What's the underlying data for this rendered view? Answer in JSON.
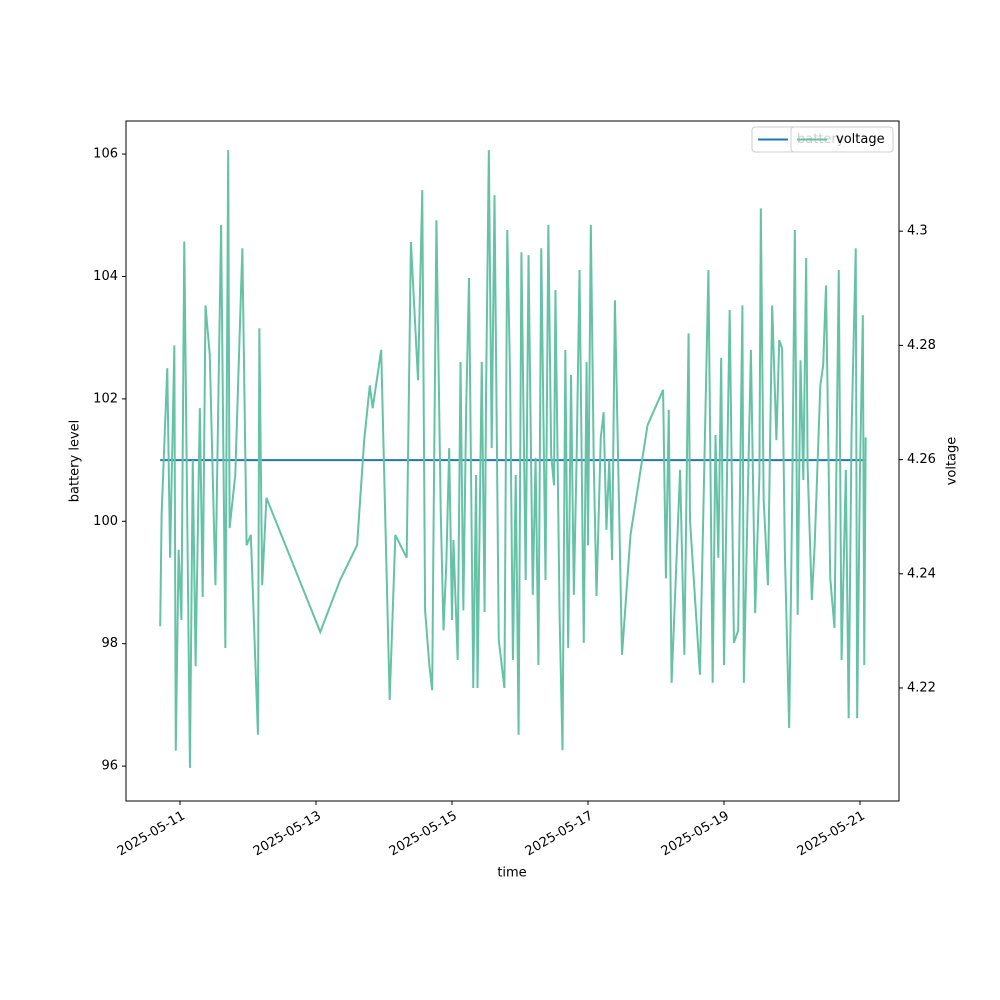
{
  "chart_data": {
    "type": "line",
    "xlabel": "time",
    "ylabel": "battery level",
    "y2label": "voltage",
    "xlim": [
      "2025-05-10T04:56",
      "2025-05-21T13:46"
    ],
    "xticks": [
      "2025-05-11",
      "2025-05-13",
      "2025-05-15",
      "2025-05-17",
      "2025-05-19",
      "2025-05-21"
    ],
    "ylim": [
      95.43,
      106.54
    ],
    "yticks": [
      96,
      98,
      100,
      102,
      104,
      106
    ],
    "y2lim": [
      4.2002,
      4.3193
    ],
    "y2ticks": [
      4.22,
      4.24,
      4.26,
      4.28,
      4.3
    ],
    "legend": "upper right",
    "x": [
      "2025-05-10T17:00",
      "2025-05-10T17:30",
      "2025-05-10T19:30",
      "2025-05-10T20:30",
      "2025-05-10T22:00",
      "2025-05-10T22:30",
      "2025-05-10T23:30",
      "2025-05-11T00:30",
      "2025-05-11T01:30",
      "2025-05-11T03:30",
      "2025-05-11T04:30",
      "2025-05-11T05:30",
      "2025-05-11T07:00",
      "2025-05-11T08:00",
      "2025-05-11T09:00",
      "2025-05-11T10:30",
      "2025-05-11T12:30",
      "2025-05-11T14:30",
      "2025-05-11T16:00",
      "2025-05-11T17:00",
      "2025-05-11T17:30",
      "2025-05-11T19:30",
      "2025-05-11T22:00",
      "2025-05-11T23:30",
      "2025-05-12T01:00",
      "2025-05-12T03:30",
      "2025-05-12T04:00",
      "2025-05-12T05:00",
      "2025-05-12T06:30",
      "2025-05-13T01:30",
      "2025-05-13T08:30",
      "2025-05-13T14:30",
      "2025-05-13T17:00",
      "2025-05-13T19:00",
      "2025-05-13T20:00",
      "2025-05-13T23:00",
      "2025-05-14T02:00",
      "2025-05-14T04:00",
      "2025-05-14T08:00",
      "2025-05-14T09:30",
      "2025-05-14T12:00",
      "2025-05-14T13:30",
      "2025-05-14T14:30",
      "2025-05-14T16:00",
      "2025-05-14T17:00",
      "2025-05-14T17:30",
      "2025-05-14T18:30",
      "2025-05-14T20:00",
      "2025-05-14T21:00",
      "2025-05-14T22:00",
      "2025-05-14T23:00",
      "2025-05-15T00:00",
      "2025-05-15T00:30",
      "2025-05-15T02:00",
      "2025-05-15T03:00",
      "2025-05-15T04:00",
      "2025-05-15T05:00",
      "2025-05-15T06:00",
      "2025-05-15T07:30",
      "2025-05-15T08:30",
      "2025-05-15T09:00",
      "2025-05-15T10:30",
      "2025-05-15T11:30",
      "2025-05-15T12:00",
      "2025-05-15T13:00",
      "2025-05-15T14:00",
      "2025-05-15T15:00",
      "2025-05-15T16:30",
      "2025-05-15T18:30",
      "2025-05-15T19:30",
      "2025-05-15T20:30",
      "2025-05-15T21:30",
      "2025-05-15T22:30",
      "2025-05-15T23:30",
      "2025-05-16T00:30",
      "2025-05-16T02:00",
      "2025-05-16T03:00",
      "2025-05-16T04:30",
      "2025-05-16T05:30",
      "2025-05-16T06:30",
      "2025-05-16T07:30",
      "2025-05-16T09:00",
      "2025-05-16T10:00",
      "2025-05-16T11:00",
      "2025-05-16T12:00",
      "2025-05-16T12:30",
      "2025-05-16T14:00",
      "2025-05-16T15:00",
      "2025-05-16T16:00",
      "2025-05-16T17:00",
      "2025-05-16T18:00",
      "2025-05-16T19:00",
      "2025-05-16T20:00",
      "2025-05-16T21:00",
      "2025-05-16T22:30",
      "2025-05-16T23:30",
      "2025-05-17T00:00",
      "2025-05-17T01:00",
      "2025-05-17T02:00",
      "2025-05-17T03:00",
      "2025-05-17T04:30",
      "2025-05-17T05:30",
      "2025-05-17T06:30",
      "2025-05-17T07:30",
      "2025-05-17T08:30",
      "2025-05-17T09:30",
      "2025-05-17T12:00",
      "2025-05-17T15:00",
      "2025-05-17T21:00",
      "2025-05-18T02:30",
      "2025-05-18T03:30",
      "2025-05-18T04:30",
      "2025-05-18T05:30",
      "2025-05-18T08:30",
      "2025-05-18T10:00",
      "2025-05-18T11:30",
      "2025-05-18T12:00",
      "2025-05-18T15:30",
      "2025-05-18T18:30",
      "2025-05-18T20:00",
      "2025-05-18T21:00",
      "2025-05-18T22:00",
      "2025-05-18T23:00",
      "2025-05-19T00:00",
      "2025-05-19T02:00",
      "2025-05-19T03:30",
      "2025-05-19T05:00",
      "2025-05-19T06:30",
      "2025-05-19T07:00",
      "2025-05-19T09:30",
      "2025-05-19T11:00",
      "2025-05-19T12:30",
      "2025-05-19T13:00",
      "2025-05-19T14:00",
      "2025-05-19T15:30",
      "2025-05-19T17:00",
      "2025-05-19T18:30",
      "2025-05-19T19:30",
      "2025-05-19T20:30",
      "2025-05-19T21:30",
      "2025-05-19T23:00",
      "2025-05-20T00:00",
      "2025-05-20T01:00",
      "2025-05-20T02:00",
      "2025-05-20T03:00",
      "2025-05-20T04:00",
      "2025-05-20T05:00",
      "2025-05-20T05:30",
      "2025-05-20T07:00",
      "2025-05-20T08:00",
      "2025-05-20T10:00",
      "2025-05-20T11:00",
      "2025-05-20T12:00",
      "2025-05-20T13:30",
      "2025-05-20T15:00",
      "2025-05-20T16:30",
      "2025-05-20T17:30",
      "2025-05-20T19:00",
      "2025-05-20T20:00",
      "2025-05-20T21:00",
      "2025-05-20T22:30",
      "2025-05-20T23:00",
      "2025-05-21T00:00",
      "2025-05-21T01:00",
      "2025-05-21T01:30",
      "2025-05-21T02:00"
    ],
    "series": [
      {
        "name": "battery",
        "color": "#1f77b4",
        "values": [
          101,
          101,
          101,
          101,
          101,
          101,
          101,
          101,
          101,
          101,
          101,
          101,
          101,
          101,
          101,
          101,
          101,
          101,
          101,
          101,
          101,
          101,
          101,
          101,
          101,
          101,
          101,
          101,
          101,
          101,
          101,
          101,
          101,
          101,
          101,
          101,
          101,
          101,
          101,
          101,
          101,
          101,
          101,
          101,
          101,
          101,
          101,
          101,
          101,
          101,
          101,
          101,
          101,
          101,
          101,
          101,
          101,
          101,
          101,
          101,
          101,
          101,
          101,
          101,
          101,
          101,
          101,
          101,
          101,
          101,
          101,
          101,
          101,
          101,
          101,
          101,
          101,
          101,
          101,
          101,
          101,
          101,
          101,
          101,
          101,
          101,
          101,
          101,
          101,
          101,
          101,
          101,
          101,
          101,
          101,
          101,
          101,
          101,
          101,
          101,
          101,
          101,
          101,
          101,
          101,
          101,
          101,
          101,
          101,
          101,
          101,
          101,
          101,
          101,
          101,
          101,
          101,
          101,
          101,
          101,
          101,
          101,
          101,
          101,
          101,
          101,
          101,
          101,
          101,
          101,
          101,
          101,
          101,
          101,
          101,
          101,
          101,
          101,
          101,
          101,
          101,
          101,
          101,
          101,
          101,
          101,
          101,
          101,
          101,
          101,
          101,
          101,
          101,
          101,
          101,
          101,
          101,
          101,
          101,
          101,
          101,
          101,
          101,
          101,
          101,
          101
        ]
      },
      {
        "name": "voltage",
        "color": "#66c2a5",
        "axis": "y2",
        "values": [
          4.2308,
          4.2503,
          4.276,
          4.2428,
          4.28,
          4.209,
          4.2442,
          4.2319,
          4.2982,
          4.206,
          4.2599,
          4.2238,
          4.269,
          4.2359,
          4.287,
          4.2783,
          4.238,
          4.3011,
          4.227,
          4.3142,
          4.248,
          4.2573,
          4.297,
          4.245,
          4.2468,
          4.2118,
          4.283,
          4.238,
          4.2533,
          4.2298,
          4.2389,
          4.245,
          4.2634,
          4.273,
          4.269,
          4.2792,
          4.2179,
          4.2468,
          4.2428,
          4.2981,
          4.2739,
          4.3072,
          4.2336,
          4.224,
          4.2196,
          4.2489,
          4.3019,
          4.2512,
          4.2301,
          4.2419,
          4.262,
          4.2319,
          4.2459,
          4.2249,
          4.2771,
          4.2336,
          4.269,
          4.2918,
          4.22,
          4.2573,
          4.22,
          4.2771,
          4.2333,
          4.2708,
          4.3142,
          4.262,
          4.3063,
          4.2284,
          4.22,
          4.3002,
          4.2743,
          4.2249,
          4.2573,
          4.2118,
          4.2963,
          4.2389,
          4.2958,
          4.2363,
          4.2603,
          4.224,
          4.297,
          4.2389,
          4.3011,
          4.2608,
          4.2555,
          4.2897,
          4.2319,
          4.2091,
          4.2792,
          4.227,
          4.2748,
          4.2363,
          4.2608,
          4.2932,
          4.2279,
          4.2771,
          4.245,
          4.3011,
          4.2603,
          4.2361,
          4.2638,
          4.2683,
          4.2477,
          4.2599,
          4.2424,
          4.2879,
          4.2258,
          4.2468,
          4.266,
          4.2722,
          4.2392,
          4.2687,
          4.2209,
          4.2582,
          4.2258,
          4.2821,
          4.2494,
          4.2223,
          4.2932,
          4.2209,
          4.2643,
          4.2428,
          4.2778,
          4.224,
          4.2862,
          4.2279,
          4.2301,
          4.287,
          4.2209,
          4.2792,
          4.2331,
          4.2573,
          4.304,
          4.2529,
          4.238,
          4.287,
          4.2634,
          4.2809,
          4.2795,
          4.2433,
          4.213,
          4.2503,
          4.3002,
          4.2328,
          4.2774,
          4.2564,
          4.2953,
          4.259,
          4.2354,
          4.245,
          4.273,
          4.2765,
          4.2905,
          4.2392,
          4.2305,
          4.2932,
          4.2249,
          4.2582,
          4.2147,
          4.2643,
          4.297,
          4.2147,
          4.2582,
          4.2853,
          4.224,
          4.2639
        ]
      }
    ]
  }
}
